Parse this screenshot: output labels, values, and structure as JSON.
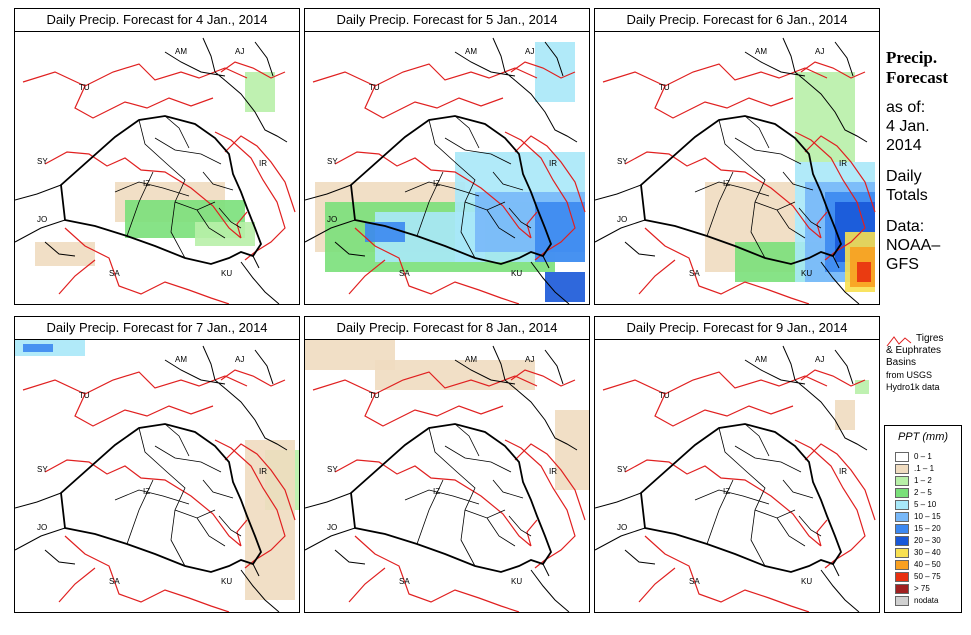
{
  "panels": [
    {
      "title": "Daily Precip. Forecast for  4 Jan., 2014"
    },
    {
      "title": "Daily Precip. Forecast for  5 Jan., 2014"
    },
    {
      "title": "Daily Precip. Forecast for  6 Jan., 2014"
    },
    {
      "title": "Daily Precip. Forecast for  7 Jan., 2014"
    },
    {
      "title": "Daily Precip. Forecast for  8 Jan., 2014"
    },
    {
      "title": "Daily Precip. Forecast for  9 Jan., 2014"
    }
  ],
  "country_labels": [
    "AM",
    "AJ",
    "TU",
    "SY",
    "IR",
    "JO",
    "SA",
    "KU",
    "IZ"
  ],
  "sidebar": {
    "heading_1": "Precip.",
    "heading_2": "Forecast",
    "as_of_label": "as of:",
    "date_line_1": "4 Jan.",
    "date_line_2": "2014",
    "totals_1": "Daily",
    "totals_2": "Totals",
    "data_1": "Data:",
    "data_2": "NOAA–",
    "data_3": "GFS"
  },
  "basin_key": {
    "line_1": "Tigres",
    "line_2": "& Euphrates",
    "line_3": "Basins",
    "line_4": "from USGS",
    "line_5": "Hydro1k data"
  },
  "ppt_legend": {
    "title": "PPT (mm)",
    "items": [
      {
        "label": "0 – 1",
        "color": "#ffffff"
      },
      {
        "label": ".1 – 1",
        "color": "#f0dcc0"
      },
      {
        "label": "1 – 2",
        "color": "#b8f0a8"
      },
      {
        "label": "2 – 5",
        "color": "#7ae07a"
      },
      {
        "label": "5 – 10",
        "color": "#a8e8f8"
      },
      {
        "label": "10 – 15",
        "color": "#78b8f8"
      },
      {
        "label": "15 – 20",
        "color": "#3c88f0"
      },
      {
        "label": "20 – 30",
        "color": "#1858d8"
      },
      {
        "label": "30 – 40",
        "color": "#f8e050"
      },
      {
        "label": "40 – 50",
        "color": "#f8a020"
      },
      {
        "label": "50 – 75",
        "color": "#e83010"
      },
      {
        "label": "> 75",
        "color": "#a02020"
      },
      {
        "label": "nodata",
        "color": "#d0d0d0"
      }
    ]
  },
  "colors": {
    "basin_line": "#e02020",
    "border_line": "#000000"
  }
}
